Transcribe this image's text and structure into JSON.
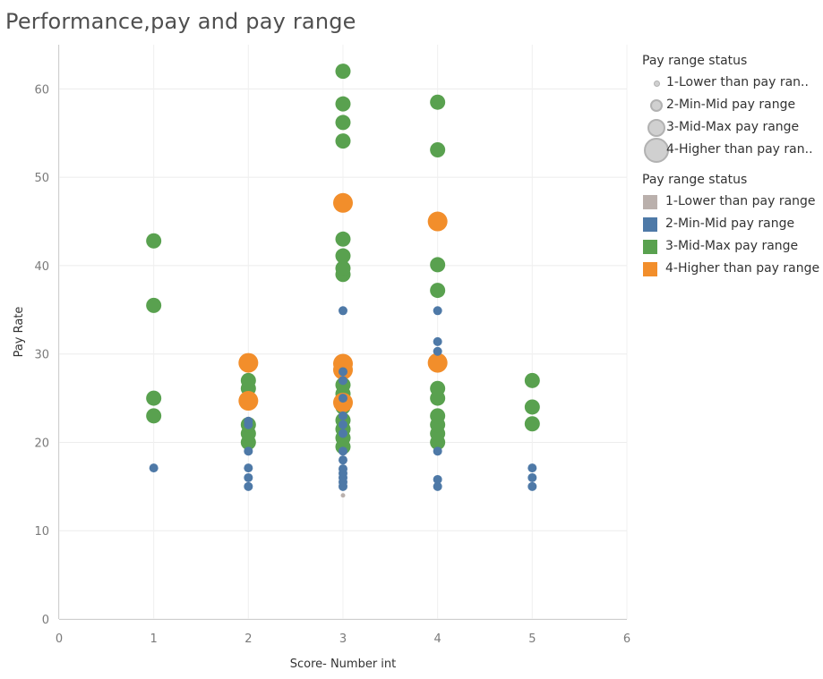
{
  "title": "Performance,pay and pay range",
  "chart_data": {
    "type": "scatter",
    "xlabel": "Score- Number int",
    "ylabel": "Pay Rate",
    "xlim": [
      0,
      6
    ],
    "ylim": [
      0,
      65
    ],
    "xticks": [
      "0",
      "1",
      "2",
      "3",
      "4",
      "5",
      "6"
    ],
    "yticks": [
      "0",
      "10",
      "20",
      "30",
      "40",
      "50",
      "60"
    ],
    "grid": true,
    "colors": {
      "1": "#bab0ac",
      "2": "#4e79a7",
      "3": "#59a14f",
      "4": "#f28e2b"
    },
    "series": [
      {
        "name": "1-Lower than pay range",
        "points": [
          [
            3,
            14
          ]
        ]
      },
      {
        "name": "2-Min-Mid pay range",
        "points": [
          [
            1,
            17.1
          ],
          [
            2,
            15
          ],
          [
            2,
            16
          ],
          [
            2,
            17.1
          ],
          [
            2,
            19
          ],
          [
            2,
            22
          ],
          [
            2,
            22.4
          ],
          [
            3,
            15
          ],
          [
            3,
            15.5
          ],
          [
            3,
            16
          ],
          [
            3,
            16.5
          ],
          [
            3,
            17
          ],
          [
            3,
            18
          ],
          [
            3,
            19
          ],
          [
            3,
            21
          ],
          [
            3,
            22
          ],
          [
            3,
            23
          ],
          [
            3,
            25
          ],
          [
            3,
            27
          ],
          [
            3,
            28
          ],
          [
            3,
            34.9
          ],
          [
            4,
            15
          ],
          [
            4,
            15.8
          ],
          [
            4,
            19
          ],
          [
            4,
            30.3
          ],
          [
            4,
            31.4
          ],
          [
            4,
            34.9
          ],
          [
            5,
            15
          ],
          [
            5,
            16
          ],
          [
            5,
            17.1
          ]
        ]
      },
      {
        "name": "3-Mid-Max pay range",
        "points": [
          [
            1,
            23
          ],
          [
            1,
            25
          ],
          [
            1,
            35.5
          ],
          [
            1,
            42.8
          ],
          [
            2,
            20
          ],
          [
            2,
            21
          ],
          [
            2,
            22
          ],
          [
            2,
            26.1
          ],
          [
            2,
            27
          ],
          [
            3,
            19.5
          ],
          [
            3,
            20.5
          ],
          [
            3,
            21.5
          ],
          [
            3,
            22.5
          ],
          [
            3,
            24
          ],
          [
            3,
            25.5
          ],
          [
            3,
            26.5
          ],
          [
            3,
            29
          ],
          [
            3,
            39
          ],
          [
            3,
            39.7
          ],
          [
            3,
            41.1
          ],
          [
            3,
            43
          ],
          [
            3,
            54.1
          ],
          [
            3,
            56.2
          ],
          [
            3,
            58.3
          ],
          [
            3,
            62
          ],
          [
            4,
            20
          ],
          [
            4,
            21
          ],
          [
            4,
            22
          ],
          [
            4,
            23
          ],
          [
            4,
            25
          ],
          [
            4,
            26.1
          ],
          [
            4,
            37.2
          ],
          [
            4,
            40.1
          ],
          [
            4,
            53.1
          ],
          [
            4,
            58.5
          ],
          [
            5,
            22.1
          ],
          [
            5,
            24
          ],
          [
            5,
            27
          ]
        ]
      },
      {
        "name": "4-Higher than pay range",
        "points": [
          [
            2,
            24.7
          ],
          [
            2,
            29
          ],
          [
            3,
            24.5
          ],
          [
            3,
            28.2
          ],
          [
            3,
            28.9
          ],
          [
            3,
            47.1
          ],
          [
            4,
            29
          ],
          [
            4,
            45
          ]
        ]
      }
    ]
  },
  "legends": {
    "size": {
      "title": "Pay range status",
      "items": [
        "1-Lower than pay ran..",
        "2-Min-Mid pay range",
        "3-Mid-Max pay range",
        "4-Higher than pay ran.."
      ]
    },
    "color": {
      "title": "Pay range status",
      "items": [
        "1-Lower than pay range",
        "2-Min-Mid pay range",
        "3-Mid-Max pay range",
        "4-Higher than pay range"
      ]
    }
  }
}
